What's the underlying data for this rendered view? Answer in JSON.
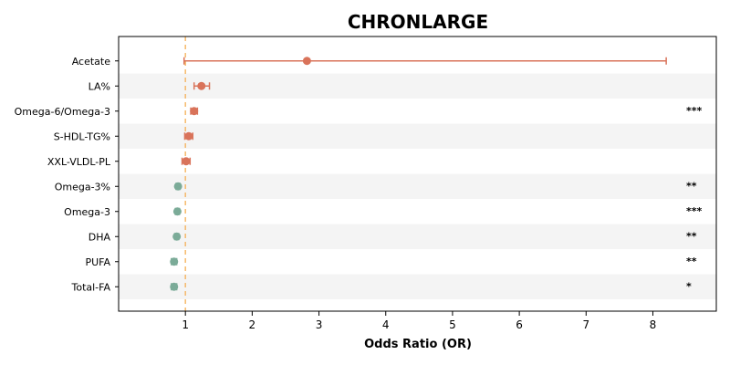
{
  "chart_data": {
    "type": "forest",
    "title": "CHRONLARGE",
    "xlabel": "Odds Ratio (OR)",
    "ylabel": "",
    "xlim": [
      0.0,
      8.95
    ],
    "xticks": [
      1,
      2,
      3,
      4,
      5,
      6,
      7,
      8
    ],
    "reference_line": 1.0,
    "grid": false,
    "row_stripes": true,
    "colors": {
      "increased": "#d9735a",
      "decreased": "#7bab98",
      "reference": "#f5b96b",
      "stripe": "#f4f4f4"
    },
    "rows": [
      {
        "label": "Acetate",
        "or": 2.82,
        "lo": 0.98,
        "hi": 8.2,
        "sig": "",
        "direction": "increased"
      },
      {
        "label": "LA%",
        "or": 1.24,
        "lo": 1.13,
        "hi": 1.36,
        "sig": "",
        "direction": "increased"
      },
      {
        "label": "Omega-6/Omega-3",
        "or": 1.13,
        "lo": 1.08,
        "hi": 1.18,
        "sig": "***",
        "direction": "increased"
      },
      {
        "label": "S-HDL-TG%",
        "or": 1.05,
        "lo": 0.99,
        "hi": 1.11,
        "sig": "",
        "direction": "increased"
      },
      {
        "label": "XXL-VLDL-PL",
        "or": 1.01,
        "lo": 0.95,
        "hi": 1.07,
        "sig": "",
        "direction": "increased"
      },
      {
        "label": "Omega-3%",
        "or": 0.89,
        "lo": 0.86,
        "hi": 0.92,
        "sig": "**",
        "direction": "decreased"
      },
      {
        "label": "Omega-3",
        "or": 0.88,
        "lo": 0.85,
        "hi": 0.91,
        "sig": "***",
        "direction": "decreased"
      },
      {
        "label": "DHA",
        "or": 0.87,
        "lo": 0.84,
        "hi": 0.9,
        "sig": "**",
        "direction": "decreased"
      },
      {
        "label": "PUFA",
        "or": 0.83,
        "lo": 0.79,
        "hi": 0.87,
        "sig": "**",
        "direction": "decreased"
      },
      {
        "label": "Total-FA",
        "or": 0.83,
        "lo": 0.79,
        "hi": 0.87,
        "sig": "*",
        "direction": "decreased"
      }
    ]
  }
}
